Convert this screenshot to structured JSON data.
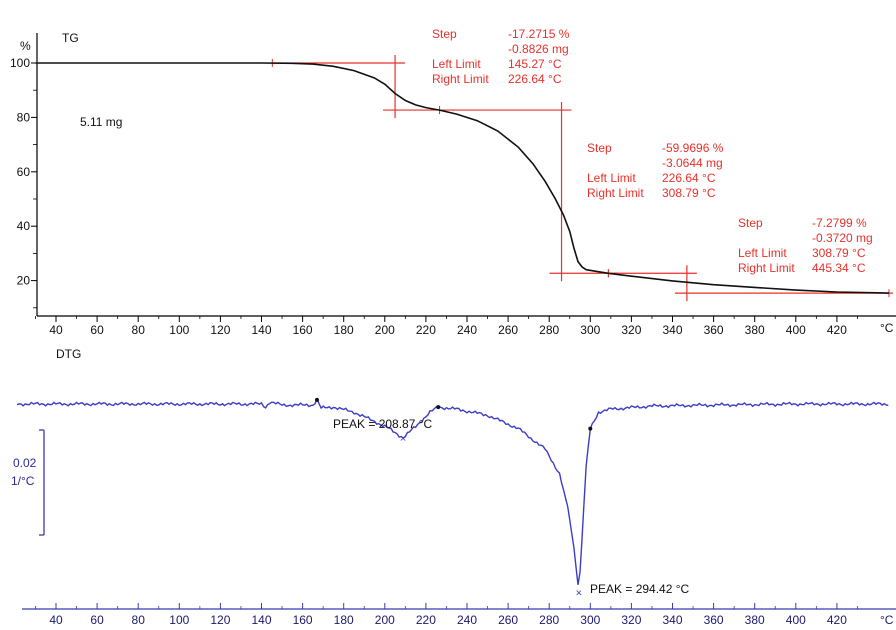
{
  "colors": {
    "tg_curve": "#111111",
    "annotation": "#e8312a",
    "dtg_curve": "#3c3cc8",
    "dtg_axis": "#3a3ab0",
    "axis": "#000000"
  },
  "chart_data": [
    {
      "type": "line",
      "panel": "TG",
      "title": "TG",
      "ylabel": "%",
      "xlabel": "°C",
      "xlim": [
        30,
        450
      ],
      "ylim": [
        12,
        105
      ],
      "x_ticks": [
        40,
        60,
        80,
        100,
        120,
        140,
        160,
        180,
        200,
        220,
        240,
        260,
        280,
        300,
        320,
        340,
        360,
        380,
        400,
        420
      ],
      "y_ticks": [
        20,
        40,
        60,
        80,
        100
      ],
      "sample_mass_label": "5.11 mg",
      "series": [
        {
          "x": [
            30,
            60,
            100,
            140,
            155,
            165,
            175,
            185,
            195,
            200,
            205,
            210,
            215,
            220,
            226.64,
            235,
            245,
            255,
            265,
            272,
            278,
            283,
            287,
            290,
            292,
            294,
            296,
            298,
            302,
            308.79,
            320,
            340,
            360,
            380,
            400,
            420,
            445.34
          ],
          "y": [
            100,
            100,
            100,
            100,
            99.9,
            99.6,
            98.8,
            97.2,
            94.5,
            92.2,
            88.8,
            86.2,
            84.6,
            83.6,
            82.7,
            81.2,
            78.8,
            75.0,
            69.0,
            63.0,
            56.5,
            50.0,
            44.0,
            38.0,
            32.0,
            27.0,
            25.0,
            24.0,
            23.5,
            22.7,
            21.6,
            19.9,
            18.5,
            17.5,
            16.5,
            15.8,
            15.4
          ]
        }
      ],
      "steps": [
        {
          "step_label": "Step",
          "step_percent": "-17.2715 %",
          "step_mass": "-0.8826 mg",
          "left_label": "Left Limit",
          "left_value": "145.27 °C",
          "right_label": "Right Limit",
          "right_value": "226.64 °C",
          "left_x": 145.27,
          "right_x": 226.64,
          "y_top": 100,
          "y_bottom": 82.7,
          "vertical_x": 205
        },
        {
          "step_label": "Step",
          "step_percent": "-59.9696 %",
          "step_mass": "-3.0644 mg",
          "left_label": "Left Limit",
          "left_value": "226.64 °C",
          "right_label": "Right Limit",
          "right_value": "308.79 °C",
          "left_x": 226.64,
          "right_x": 308.79,
          "y_top": 82.7,
          "y_bottom": 22.7,
          "vertical_x": 286
        },
        {
          "step_label": "Step",
          "step_percent": "-7.2799 %",
          "step_mass": "-0.3720 mg",
          "left_label": "Left Limit",
          "left_value": "308.79 °C",
          "right_label": "Right Limit",
          "right_value": "445.34 °C",
          "left_x": 308.79,
          "right_x": 445.34,
          "y_top": 22.7,
          "y_bottom": 15.4,
          "vertical_x": 347
        }
      ]
    },
    {
      "type": "line",
      "panel": "DTG",
      "title": "DTG",
      "xlabel": "°C",
      "xlim": [
        30,
        450
      ],
      "x_ticks": [
        40,
        60,
        80,
        100,
        120,
        140,
        160,
        180,
        200,
        220,
        240,
        260,
        280,
        300,
        320,
        340,
        360,
        380,
        400,
        420
      ],
      "scale_bar_value": "0.02",
      "scale_bar_unit": "1/°C",
      "series": [
        {
          "x": [
            30,
            60,
            100,
            140,
            142,
            144,
            150,
            165,
            167,
            169,
            175,
            185,
            195,
            202,
            208.87,
            215,
            222,
            226,
            235,
            250,
            265,
            278,
            285,
            289,
            292,
            294.42,
            296,
            298,
            300,
            304,
            310,
            330,
            360,
            400,
            445
          ],
          "y": [
            0,
            0,
            0,
            0,
            -0.0015,
            0.001,
            -0.0005,
            -0.0005,
            0.002,
            -0.002,
            -0.0015,
            -0.004,
            -0.0085,
            -0.012,
            -0.0165,
            -0.011,
            -0.004,
            -0.0015,
            -0.0025,
            -0.0055,
            -0.012,
            -0.022,
            -0.034,
            -0.05,
            -0.07,
            -0.092,
            -0.065,
            -0.03,
            -0.012,
            -0.004,
            -0.0025,
            -0.001,
            -0.0005,
            0,
            0
          ]
        }
      ],
      "peaks": [
        {
          "x": 208.87,
          "label": "PEAK = 208.87 °C"
        },
        {
          "x": 294.42,
          "label": "PEAK = 294.42 °C"
        }
      ]
    }
  ]
}
